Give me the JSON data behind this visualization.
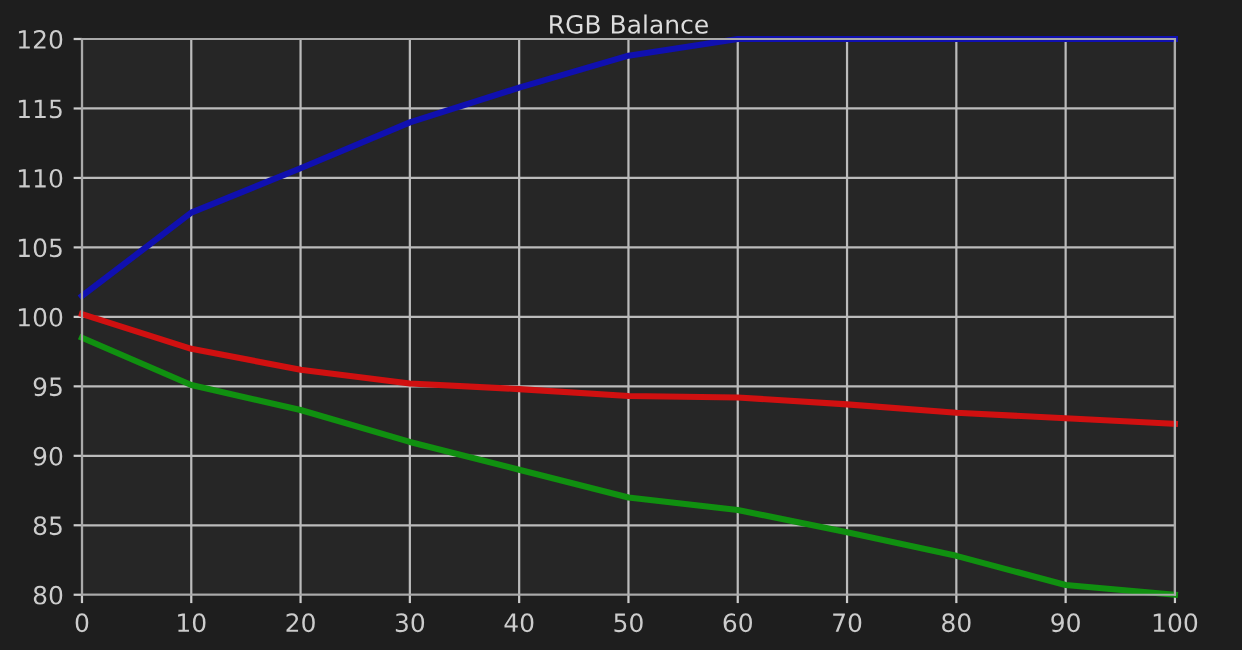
{
  "chart_data": {
    "type": "line",
    "title": "RGB Balance",
    "x": [
      0,
      10,
      20,
      30,
      40,
      50,
      60,
      70,
      80,
      90,
      100
    ],
    "series": [
      {
        "color": "#1010b0",
        "values": [
          101.5,
          107.5,
          110.7,
          114,
          116.5,
          118.8,
          120,
          120,
          120,
          120,
          120
        ]
      },
      {
        "color": "#d01010",
        "values": [
          100.2,
          97.7,
          96.2,
          95.2,
          94.8,
          94.3,
          94.2,
          93.7,
          93.1,
          92.7,
          92.3
        ]
      },
      {
        "color": "#109010",
        "values": [
          98.5,
          95.1,
          93.3,
          91.0,
          89.0,
          87.0,
          86.1,
          84.5,
          82.8,
          80.7,
          80
        ]
      }
    ],
    "xlim": [
      0,
      100
    ],
    "xticks": [
      0,
      10,
      20,
      30,
      40,
      50,
      60,
      70,
      80,
      90,
      100
    ],
    "ylim": [
      80,
      120
    ],
    "yticks": [
      80,
      85,
      90,
      95,
      100,
      105,
      110,
      115,
      120
    ],
    "grid": true,
    "legend": false,
    "marker": "none",
    "line_style": "solid"
  }
}
